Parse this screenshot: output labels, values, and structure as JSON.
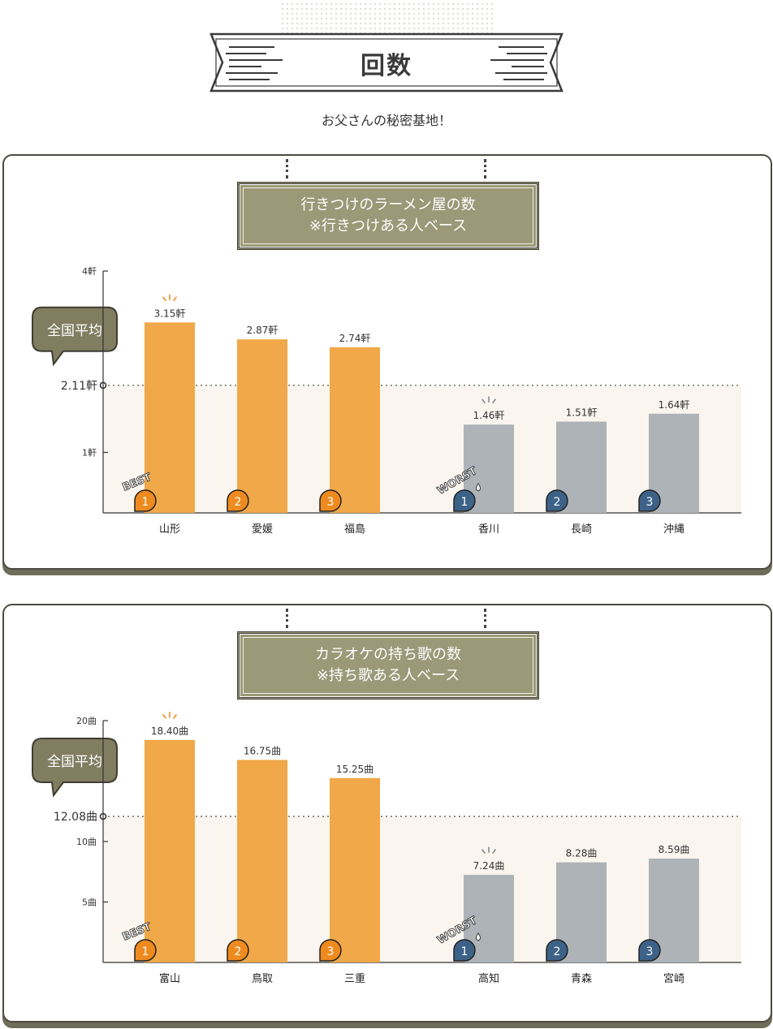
{
  "header": {
    "title": "回数",
    "subtitle": "お父さんの秘密基地！"
  },
  "panels": [
    {
      "heading_line1": "行きつけのラーメン屋の数",
      "heading_line2": "※行きつけある人ベース"
    },
    {
      "heading_line1": "カラオケの持ち歌の数",
      "heading_line2": "※持ち歌ある人ベース"
    }
  ],
  "badges": {
    "average": "全国平均",
    "best": "BEST",
    "worst": "WORST",
    "ranks": [
      "1",
      "2",
      "3"
    ]
  },
  "colors": {
    "best_bar": "#f0a848",
    "worst_bar": "#adb3b6",
    "best_rank": "#ef8a1e",
    "worst_rank": "#3d6288",
    "band": "#faf5ee",
    "board": "#9a9978"
  },
  "chart_data": [
    {
      "type": "bar",
      "unit": "軒",
      "ylim": [
        0,
        4
      ],
      "yticks": [
        {
          "value": 1,
          "label": "1軒"
        },
        {
          "value": 4,
          "label": "4軒"
        }
      ],
      "average": {
        "value": 2.11,
        "label": "2.11軒"
      },
      "categories": [
        "山形",
        "愛媛",
        "福島",
        "香川",
        "長崎",
        "沖縄"
      ],
      "values": [
        3.15,
        2.87,
        2.74,
        1.46,
        1.51,
        1.64
      ],
      "value_labels": [
        "3.15軒",
        "2.87軒",
        "2.74軒",
        "1.46軒",
        "1.51軒",
        "1.64軒"
      ],
      "groups": [
        "best",
        "best",
        "best",
        "worst",
        "worst",
        "worst"
      ],
      "ranks": [
        1,
        2,
        3,
        1,
        2,
        3
      ]
    },
    {
      "type": "bar",
      "unit": "曲",
      "ylim": [
        0,
        20
      ],
      "yticks": [
        {
          "value": 5,
          "label": "5曲"
        },
        {
          "value": 10,
          "label": "10曲"
        },
        {
          "value": 20,
          "label": "20曲"
        }
      ],
      "average": {
        "value": 12.08,
        "label": "12.08曲"
      },
      "categories": [
        "富山",
        "鳥取",
        "三重",
        "高知",
        "青森",
        "宮崎"
      ],
      "values": [
        18.4,
        16.75,
        15.25,
        7.24,
        8.28,
        8.59
      ],
      "value_labels": [
        "18.40曲",
        "16.75曲",
        "15.25曲",
        "7.24曲",
        "8.28曲",
        "8.59曲"
      ],
      "groups": [
        "best",
        "best",
        "best",
        "worst",
        "worst",
        "worst"
      ],
      "ranks": [
        1,
        2,
        3,
        1,
        2,
        3
      ]
    }
  ]
}
